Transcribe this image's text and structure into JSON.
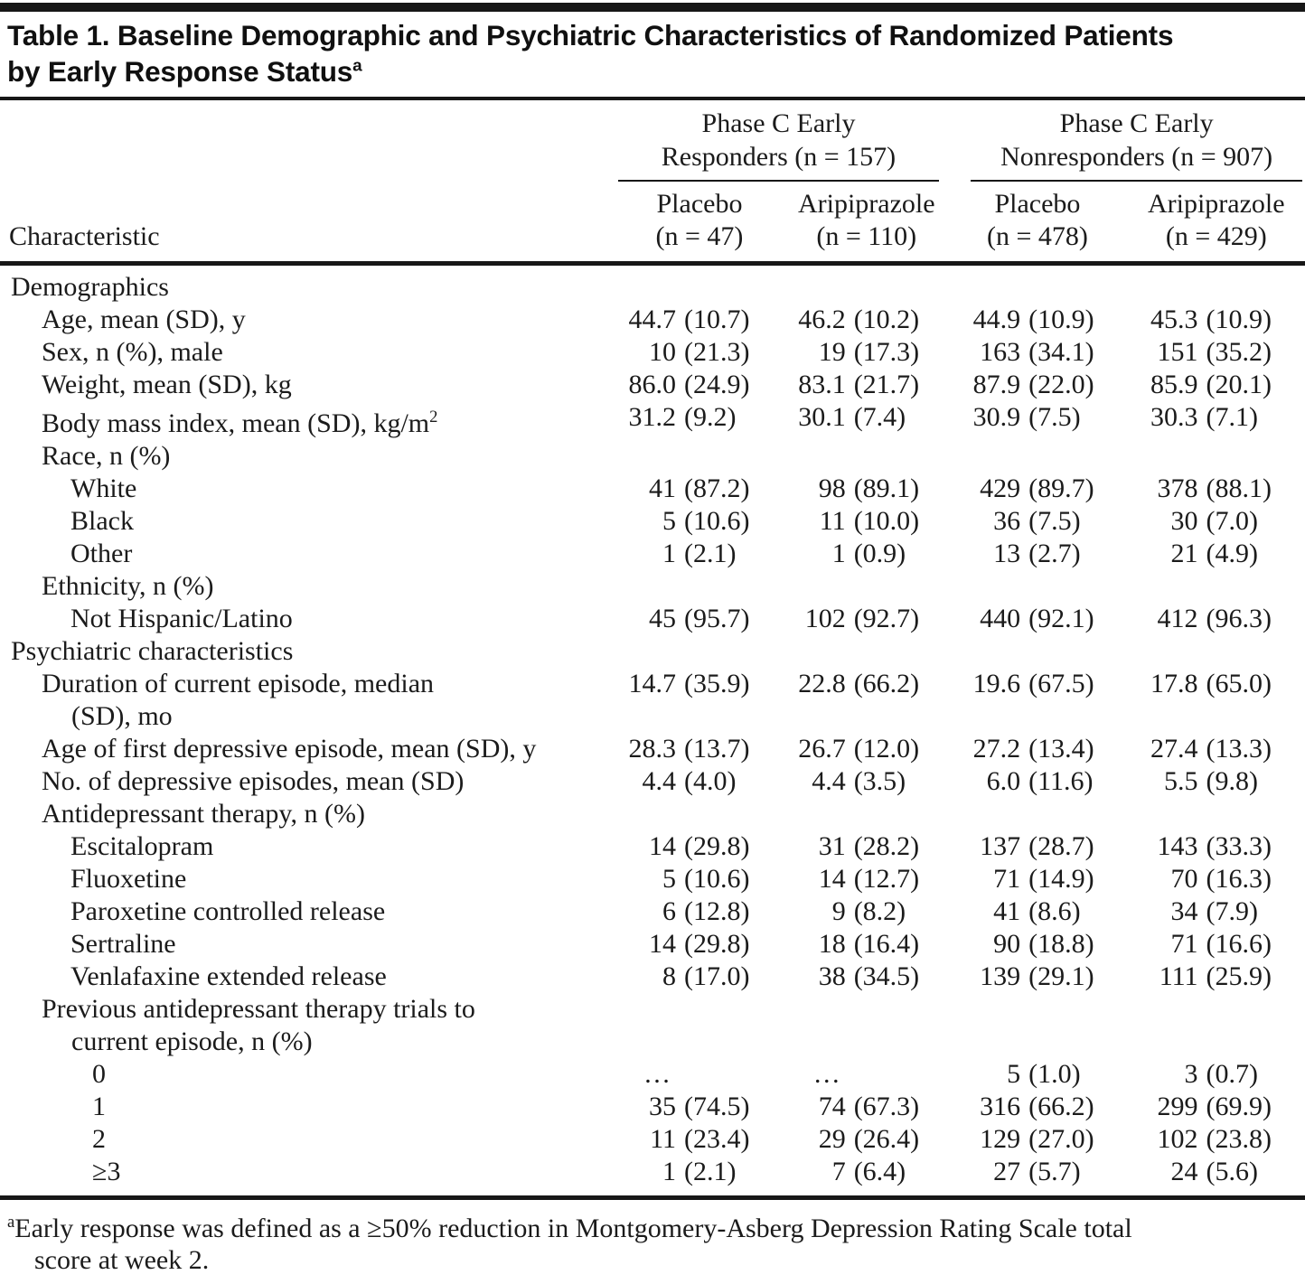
{
  "title": {
    "line1": "Table 1. Baseline Demographic and Psychiatric Characteristics of Randomized Patients",
    "line2": "by Early Response Status",
    "line2_sup": "a"
  },
  "table": {
    "label_header": "Characteristic",
    "groups": [
      {
        "line1": "Phase C Early",
        "line2": "Responders (n = 157)"
      },
      {
        "line1": "Phase C Early",
        "line2": "Nonresponders (n = 907)"
      }
    ],
    "columns": [
      {
        "line1": "Placebo",
        "line2": "(n = 47)"
      },
      {
        "line1": "Aripiprazole",
        "line2": "(n = 110)"
      },
      {
        "line1": "Placebo",
        "line2": "(n = 478)"
      },
      {
        "line1": "Aripiprazole",
        "line2": "(n = 429)"
      }
    ],
    "rows": [
      {
        "label": "Demographics",
        "indent": 0,
        "values": [
          "",
          "",
          "",
          ""
        ]
      },
      {
        "label": "Age, mean (SD), y",
        "indent": 1,
        "values": [
          "44.7 (10.7)",
          "46.2 (10.2)",
          "44.9 (10.9)",
          "45.3 (10.9)"
        ]
      },
      {
        "label": "Sex, n (%), male",
        "indent": 1,
        "values": [
          "10 (21.3)",
          "19 (17.3)",
          "163 (34.1)",
          "151 (35.2)"
        ]
      },
      {
        "label": "Weight, mean (SD), kg",
        "indent": 1,
        "values": [
          "86.0 (24.9)",
          "83.1 (21.7)",
          "87.9 (22.0)",
          "85.9 (20.1)"
        ]
      },
      {
        "label": "Body mass index, mean (SD), kg/m",
        "label_sup": "2",
        "indent": 1,
        "values": [
          "31.2 (9.2)",
          "30.1 (7.4)",
          "30.9 (7.5)",
          "30.3 (7.1)"
        ]
      },
      {
        "label": "Race, n (%)",
        "indent": 1,
        "values": [
          "",
          "",
          "",
          ""
        ]
      },
      {
        "label": "White",
        "indent": 2,
        "values": [
          "41 (87.2)",
          "98 (89.1)",
          "429 (89.7)",
          "378 (88.1)"
        ]
      },
      {
        "label": "Black",
        "indent": 2,
        "values": [
          "5 (10.6)",
          "11 (10.0)",
          "36 (7.5)",
          "30 (7.0)"
        ]
      },
      {
        "label": "Other",
        "indent": 2,
        "values": [
          "1 (2.1)",
          "1 (0.9)",
          "13 (2.7)",
          "21 (4.9)"
        ]
      },
      {
        "label": "Ethnicity, n (%)",
        "indent": 1,
        "values": [
          "",
          "",
          "",
          ""
        ]
      },
      {
        "label": "Not Hispanic/Latino",
        "indent": 2,
        "values": [
          "45 (95.7)",
          "102 (92.7)",
          "440 (92.1)",
          "412 (96.3)"
        ]
      },
      {
        "label": "Psychiatric characteristics",
        "indent": 0,
        "values": [
          "",
          "",
          "",
          ""
        ]
      },
      {
        "label": "Duration of current episode, median",
        "label2": "(SD), mo",
        "indent": 1,
        "values": [
          "14.7 (35.9)",
          "22.8 (66.2)",
          "19.6 (67.5)",
          "17.8 (65.0)"
        ]
      },
      {
        "label": "Age of first depressive episode, mean (SD), y",
        "indent": 1,
        "values": [
          "28.3 (13.7)",
          "26.7 (12.0)",
          "27.2 (13.4)",
          "27.4 (13.3)"
        ]
      },
      {
        "label": "No. of depressive episodes, mean (SD)",
        "indent": 1,
        "values": [
          "4.4 (4.0)",
          "4.4 (3.5)",
          "6.0 (11.6)",
          "5.5 (9.8)"
        ]
      },
      {
        "label": "Antidepressant therapy, n (%)",
        "indent": 1,
        "values": [
          "",
          "",
          "",
          ""
        ]
      },
      {
        "label": "Escitalopram",
        "indent": 2,
        "values": [
          "14 (29.8)",
          "31 (28.2)",
          "137 (28.7)",
          "143 (33.3)"
        ]
      },
      {
        "label": "Fluoxetine",
        "indent": 2,
        "values": [
          "5 (10.6)",
          "14 (12.7)",
          "71 (14.9)",
          "70 (16.3)"
        ]
      },
      {
        "label": "Paroxetine controlled release",
        "indent": 2,
        "values": [
          "6 (12.8)",
          "9 (8.2)",
          "41 (8.6)",
          "34 (7.9)"
        ]
      },
      {
        "label": "Sertraline",
        "indent": 2,
        "values": [
          "14 (29.8)",
          "18 (16.4)",
          "90 (18.8)",
          "71 (16.6)"
        ]
      },
      {
        "label": "Venlafaxine extended release",
        "indent": 2,
        "values": [
          "8 (17.0)",
          "38 (34.5)",
          "139 (29.1)",
          "111 (25.9)"
        ]
      },
      {
        "label": "Previous antidepressant therapy trials to",
        "label2": "current episode, n (%)",
        "indent": 1,
        "values": [
          "",
          "",
          "",
          ""
        ]
      },
      {
        "label": "0",
        "indent": 3,
        "values": [
          "…",
          "…",
          "5 (1.0)",
          "3 (0.7)"
        ]
      },
      {
        "label": "1",
        "indent": 3,
        "values": [
          "35 (74.5)",
          "74 (67.3)",
          "316 (66.2)",
          "299 (69.9)"
        ]
      },
      {
        "label": "2",
        "indent": 3,
        "values": [
          "11 (23.4)",
          "29 (26.4)",
          "129 (27.0)",
          "102 (23.8)"
        ]
      },
      {
        "label": "≥3",
        "indent": 3,
        "values": [
          "1 (2.1)",
          "7 (6.4)",
          "27 (5.7)",
          "24 (5.6)"
        ]
      }
    ]
  },
  "footnote": {
    "sup": "a",
    "line1": "Early response was defined as a ≥50% reduction in Montgomery-Asberg Depression Rating Scale total",
    "line2": "score at week 2."
  }
}
